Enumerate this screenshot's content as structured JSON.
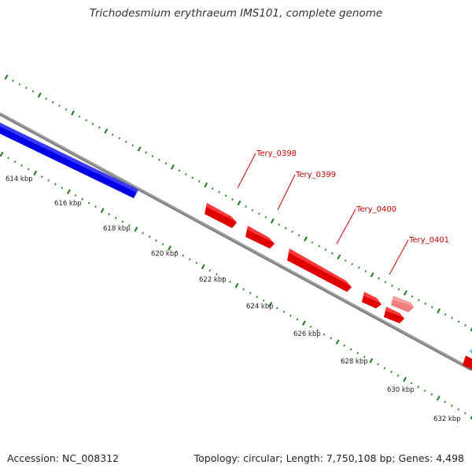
{
  "title": "Trichodesmium erythraeum IMS101, complete genome",
  "colors": {
    "background": "#ffffff",
    "backbone": "#8a8a8a",
    "scale_ticks": "#1a7a1a",
    "blue_feature": "#0000e6",
    "red_feature": "#ee0000",
    "pink_feature": "#f08080",
    "cyan_feature": "#66ccdd",
    "gene_label": "#cc0000",
    "leader_line": "#dd0000"
  },
  "scale": {
    "unit": "kbp",
    "labels": [
      "614 kbp",
      "616 kbp",
      "618 kbp",
      "620 kbp",
      "622 kbp",
      "624 kbp",
      "626 kbp",
      "628 kbp",
      "630 kbp",
      "632 kbp"
    ]
  },
  "genes": [
    {
      "name": "Tery_0398"
    },
    {
      "name": "Tery_0399"
    },
    {
      "name": "Tery_0400"
    },
    {
      "name": "Tery_0401"
    }
  ],
  "footer": {
    "accession": "Accession: NC_008312",
    "summary": "Topology: circular; Length: 7,750,108 bp; Genes: 4,498"
  }
}
